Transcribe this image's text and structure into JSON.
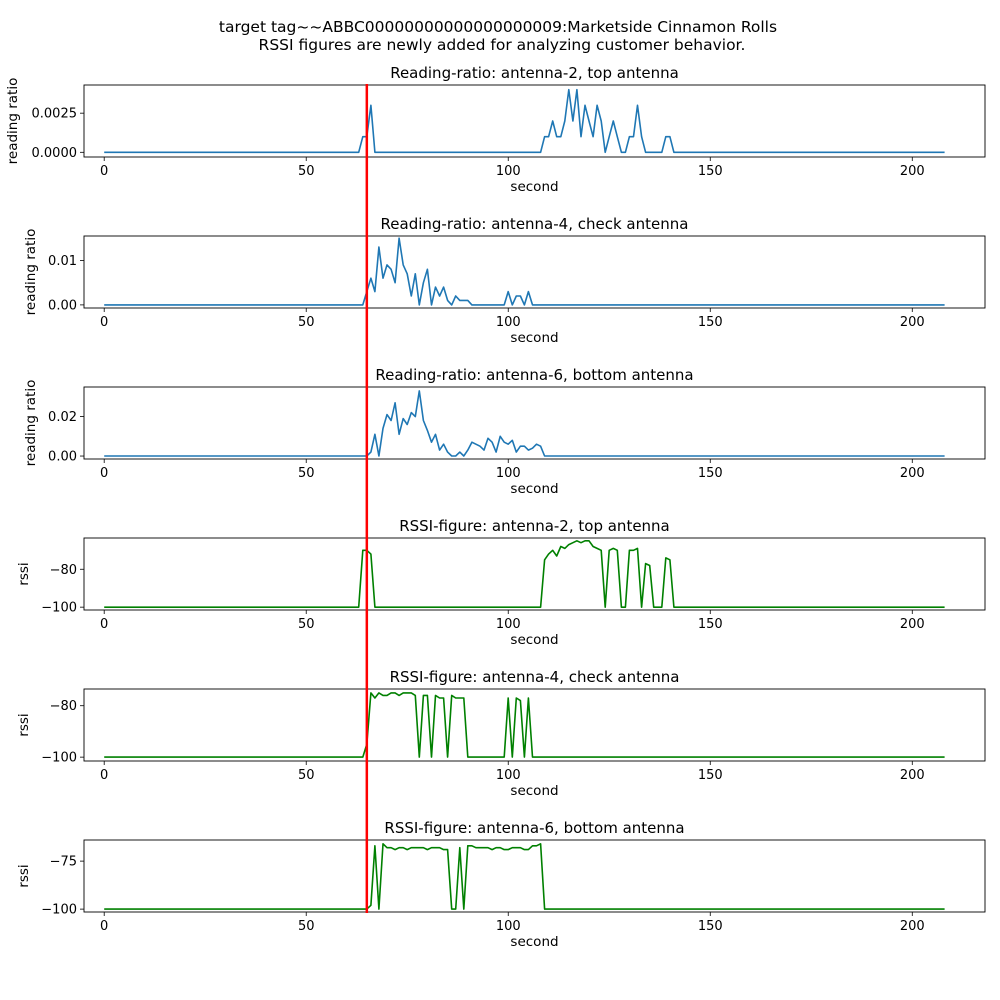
{
  "figure": {
    "suptitle_line1": "target tag~~ABBC00000000000000000009:Marketside Cinnamon Rolls",
    "suptitle_line2": "RSSI figures are newly added for analyzing customer behavior.",
    "marker": {
      "x": 65,
      "color": "#ff0000"
    }
  },
  "chart_data": [
    {
      "type": "line",
      "title": "Reading-ratio: antenna-2, top antenna",
      "xlabel": "second",
      "ylabel": "reading ratio",
      "xlim": [
        -5,
        218
      ],
      "ylim": [
        -0.0003,
        0.0043
      ],
      "xticks": [
        0,
        50,
        100,
        150,
        200
      ],
      "yticks": [
        0.0,
        0.0025
      ],
      "ytick_labels": [
        "0.0000",
        "0.0025"
      ],
      "color": "#1f77b4",
      "x": [
        0,
        63,
        64,
        65,
        66,
        67,
        68,
        108,
        109,
        110,
        111,
        112,
        113,
        114,
        115,
        116,
        117,
        118,
        119,
        120,
        121,
        122,
        123,
        124,
        125,
        126,
        127,
        128,
        129,
        130,
        131,
        132,
        133,
        134,
        135,
        136,
        137,
        138,
        139,
        140,
        141,
        142,
        208
      ],
      "y": [
        0,
        0,
        0.001,
        0.001,
        0.003,
        0,
        0,
        0,
        0.001,
        0.001,
        0.002,
        0.001,
        0.001,
        0.002,
        0.004,
        0.002,
        0.004,
        0.001,
        0.003,
        0.002,
        0.001,
        0.003,
        0.002,
        0,
        0.001,
        0.002,
        0.001,
        0,
        0,
        0.001,
        0.001,
        0.003,
        0.001,
        0,
        0,
        0,
        0,
        0,
        0.001,
        0.001,
        0,
        0,
        0
      ]
    },
    {
      "type": "line",
      "title": "Reading-ratio: antenna-4, check antenna",
      "xlabel": "second",
      "ylabel": "reading ratio",
      "xlim": [
        -5,
        218
      ],
      "ylim": [
        -0.0007,
        0.0155
      ],
      "xticks": [
        0,
        50,
        100,
        150,
        200
      ],
      "yticks": [
        0.0,
        0.01
      ],
      "ytick_labels": [
        "0.00",
        "0.01"
      ],
      "color": "#1f77b4",
      "x": [
        0,
        64,
        65,
        66,
        67,
        68,
        69,
        70,
        71,
        72,
        73,
        74,
        75,
        76,
        77,
        78,
        79,
        80,
        81,
        82,
        83,
        84,
        85,
        86,
        87,
        88,
        89,
        90,
        91,
        92,
        98,
        99,
        100,
        101,
        102,
        103,
        104,
        105,
        106,
        107,
        208
      ],
      "y": [
        0,
        0,
        0.003,
        0.006,
        0.003,
        0.013,
        0.006,
        0.009,
        0.008,
        0.005,
        0.015,
        0.009,
        0.007,
        0.002,
        0.007,
        0.0,
        0.005,
        0.008,
        0.0,
        0.004,
        0.002,
        0.004,
        0.001,
        0.0,
        0.002,
        0.001,
        0.001,
        0.001,
        0.0,
        0,
        0,
        0,
        0.003,
        0.0,
        0.002,
        0.002,
        0.0,
        0.003,
        0.0,
        0,
        0
      ]
    },
    {
      "type": "line",
      "title": "Reading-ratio: antenna-6, bottom antenna",
      "xlabel": "second",
      "ylabel": "reading ratio",
      "xlim": [
        -5,
        218
      ],
      "ylim": [
        -0.0015,
        0.035
      ],
      "xticks": [
        0,
        50,
        100,
        150,
        200
      ],
      "yticks": [
        0.0,
        0.02
      ],
      "ytick_labels": [
        "0.00",
        "0.02"
      ],
      "color": "#1f77b4",
      "x": [
        0,
        64,
        65,
        66,
        67,
        68,
        69,
        70,
        71,
        72,
        73,
        74,
        75,
        76,
        77,
        78,
        79,
        80,
        81,
        82,
        83,
        84,
        85,
        86,
        87,
        88,
        89,
        90,
        91,
        92,
        93,
        94,
        95,
        96,
        97,
        98,
        99,
        100,
        101,
        102,
        103,
        104,
        105,
        106,
        107,
        108,
        109,
        208
      ],
      "y": [
        0,
        0,
        0.0,
        0.002,
        0.011,
        0.0,
        0.014,
        0.021,
        0.018,
        0.027,
        0.011,
        0.019,
        0.016,
        0.022,
        0.02,
        0.033,
        0.018,
        0.013,
        0.007,
        0.011,
        0.003,
        0.006,
        0.002,
        0.0,
        0.0,
        0.002,
        0.0,
        0.003,
        0.007,
        0.006,
        0.005,
        0.003,
        0.009,
        0.007,
        0.002,
        0.01,
        0.007,
        0.006,
        0.008,
        0.002,
        0.005,
        0.005,
        0.003,
        0.004,
        0.006,
        0.005,
        0,
        0
      ]
    },
    {
      "type": "line",
      "title": "RSSI-figure: antenna-2, top antenna",
      "xlabel": "second",
      "ylabel": "rssi",
      "xlim": [
        -5,
        218
      ],
      "ylim": [
        -101.5,
        -63.5
      ],
      "xticks": [
        0,
        50,
        100,
        150,
        200
      ],
      "yticks": [
        -80,
        -100
      ],
      "ytick_labels": [
        "−80",
        "−100"
      ],
      "color": "#008000",
      "x": [
        0,
        63,
        64,
        65,
        66,
        67,
        108,
        109,
        110,
        111,
        112,
        113,
        114,
        115,
        116,
        117,
        118,
        119,
        120,
        121,
        122,
        123,
        124,
        125,
        126,
        127,
        128,
        129,
        130,
        131,
        132,
        133,
        134,
        135,
        136,
        137,
        138,
        139,
        140,
        141,
        142,
        208
      ],
      "y": [
        -100,
        -100,
        -70,
        -70,
        -72,
        -100,
        -100,
        -75,
        -72,
        -70,
        -73,
        -68,
        -69,
        -67,
        -66,
        -65,
        -66,
        -65,
        -65,
        -68,
        -69,
        -70,
        -100,
        -70,
        -69,
        -70,
        -100,
        -100,
        -70,
        -70,
        -69,
        -100,
        -77,
        -78,
        -100,
        -100,
        -100,
        -74,
        -75,
        -100,
        -100,
        -100
      ]
    },
    {
      "type": "line",
      "title": "RSSI-figure: antenna-4, check antenna",
      "xlabel": "second",
      "ylabel": "rssi",
      "xlim": [
        -5,
        218
      ],
      "ylim": [
        -101.5,
        -73.5
      ],
      "xticks": [
        0,
        50,
        100,
        150,
        200
      ],
      "yticks": [
        -80,
        -100
      ],
      "ytick_labels": [
        "−80",
        "−100"
      ],
      "color": "#008000",
      "x": [
        0,
        64,
        65,
        66,
        67,
        68,
        69,
        70,
        71,
        72,
        73,
        74,
        75,
        76,
        77,
        78,
        79,
        80,
        81,
        82,
        83,
        84,
        85,
        86,
        87,
        88,
        89,
        90,
        91,
        92,
        98,
        99,
        100,
        101,
        102,
        103,
        104,
        105,
        106,
        208
      ],
      "y": [
        -100,
        -100,
        -95,
        -75,
        -77,
        -75,
        -76,
        -76,
        -75,
        -75,
        -76,
        -75,
        -75,
        -75,
        -76,
        -100,
        -76,
        -76,
        -100,
        -76,
        -77,
        -77,
        -100,
        -76,
        -77,
        -77,
        -77,
        -100,
        -100,
        -100,
        -100,
        -100,
        -77,
        -100,
        -77,
        -78,
        -100,
        -77,
        -100,
        -100
      ]
    },
    {
      "type": "line",
      "title": "RSSI-figure: antenna-6, bottom antenna",
      "xlabel": "second",
      "ylabel": "rssi",
      "xlim": [
        -5,
        218
      ],
      "ylim": [
        -101.5,
        -64
      ],
      "xticks": [
        0,
        50,
        100,
        150,
        200
      ],
      "yticks": [
        -75,
        -100
      ],
      "ytick_labels": [
        "−75",
        "−100"
      ],
      "color": "#008000",
      "x": [
        0,
        64,
        65,
        66,
        67,
        68,
        69,
        70,
        71,
        72,
        73,
        74,
        75,
        76,
        77,
        78,
        79,
        80,
        81,
        82,
        83,
        84,
        85,
        86,
        87,
        88,
        89,
        90,
        91,
        92,
        93,
        94,
        95,
        96,
        97,
        98,
        99,
        100,
        101,
        102,
        103,
        104,
        105,
        106,
        107,
        108,
        109,
        208
      ],
      "y": [
        -100,
        -100,
        -100,
        -98,
        -67,
        -100,
        -66,
        -68,
        -68,
        -69,
        -68,
        -68,
        -69,
        -68,
        -68,
        -68,
        -68,
        -69,
        -68,
        -68,
        -68,
        -69,
        -69,
        -100,
        -100,
        -68,
        -100,
        -67,
        -67,
        -68,
        -68,
        -68,
        -68,
        -69,
        -68,
        -68,
        -69,
        -69,
        -68,
        -68,
        -68,
        -69,
        -69,
        -67,
        -67,
        -66,
        -100,
        -100
      ]
    }
  ]
}
